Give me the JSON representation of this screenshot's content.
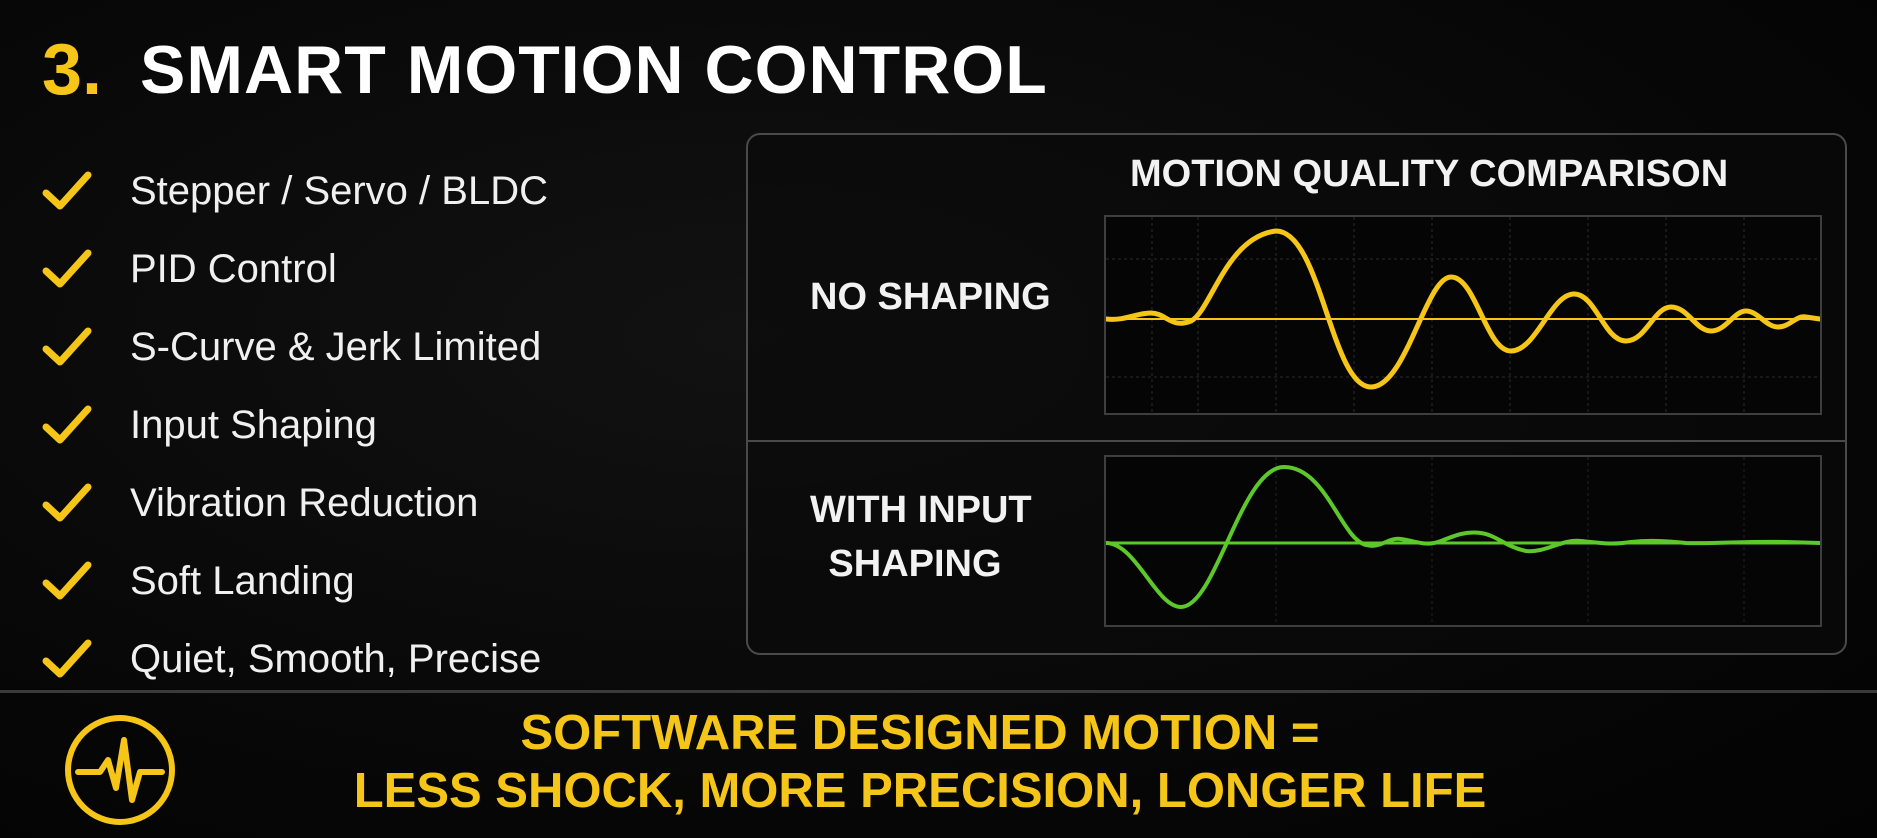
{
  "header": {
    "number": "3.",
    "title": "SMART MOTION CONTROL"
  },
  "features": [
    "Stepper / Servo / BLDC",
    "PID Control",
    "S-Curve & Jerk Limited",
    "Input Shaping",
    "Vibration Reduction",
    "Soft Landing",
    "Quiet, Smooth, Precise"
  ],
  "comparison": {
    "title": "MOTION QUALITY COMPARISON",
    "no_shaping": {
      "label": "NO SHAPING",
      "color": "#f5c518"
    },
    "with_shaping": {
      "label_line1": "WITH INPUT",
      "label_line2": "SHAPING",
      "color": "#5cc82a"
    }
  },
  "tagline": {
    "line1": "SOFTWARE DESIGNED MOTION =",
    "line2": "LESS SHOCK, MORE PRECISION, LONGER LIFE"
  },
  "colors": {
    "accent": "#f5c518",
    "green": "#5cc82a",
    "background": "#080808"
  },
  "icons": {
    "check": "check-icon",
    "pulse": "heartbeat-pulse-icon"
  }
}
